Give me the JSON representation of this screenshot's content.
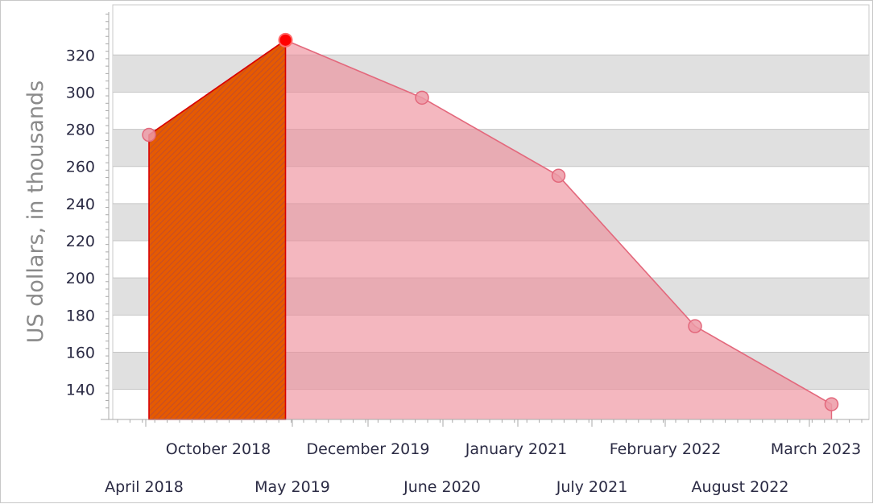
{
  "chart_data": {
    "type": "area",
    "ylabel": "US dollars, in thousands",
    "xlabel": "",
    "ylim": [
      123.8,
      347
    ],
    "yticks": [
      140,
      160,
      180,
      200,
      220,
      240,
      260,
      280,
      300,
      320
    ],
    "x_axis_labels_row1": [
      "October 2018",
      "December 2019",
      "January 2021",
      "February 2022",
      "March 2023"
    ],
    "x_axis_labels_row2": [
      "April 2018",
      "May 2019",
      "June 2020",
      "July 2021",
      "August 2022"
    ],
    "categories": [
      "April 2018",
      "May 2019",
      "June 2020",
      "July 2021",
      "August 2022",
      "March 2023"
    ],
    "series": [
      {
        "values": [
          277,
          328,
          297,
          255,
          174,
          132
        ]
      }
    ],
    "highlighted_point": {
      "category": "May 2019",
      "value": 328
    },
    "highlighted_segment": {
      "from": "April 2018",
      "to": "May 2019"
    },
    "grid": true,
    "striped_bands": true,
    "colors": {
      "area_fill": "#ee8a98",
      "area_line": "#e3687c",
      "marker_fill": "#ec9aa6",
      "highlight_marker": "#ff0000",
      "highlight_fill": "#e65a00",
      "highlight_hatch": "#c44e2a",
      "band": "#e0e0e0",
      "grid_line": "#c6c6c6"
    }
  }
}
